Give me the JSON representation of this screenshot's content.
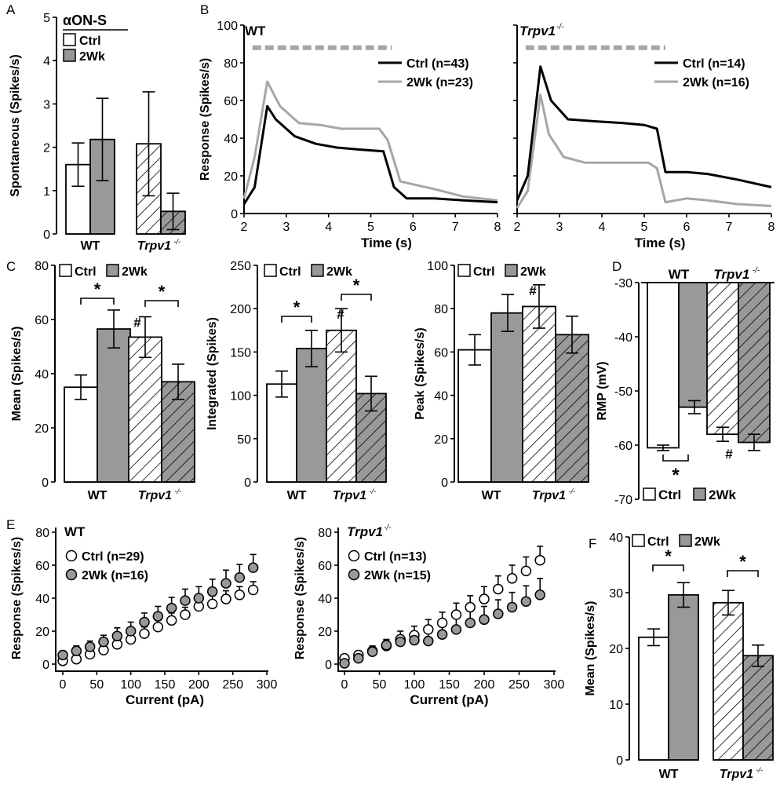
{
  "panels": {
    "A": "A",
    "B": "B",
    "C": "C",
    "D": "D",
    "E": "E",
    "F": "F"
  },
  "colors": {
    "ctrl": "#ffffff",
    "wk2": "#999999",
    "trace_ctrl": "#000000",
    "trace_2wk": "#a6a6a6",
    "stim_bar": "#a6a6a6"
  },
  "groups": {
    "wt": "WT",
    "trpv1": "Trpv1",
    "trpv1_sup": "-/-"
  },
  "legend": {
    "ctrl": "Ctrl",
    "wk2": "2Wk"
  },
  "chart_data": [
    {
      "id": "A",
      "type": "bar",
      "title": "αON-S",
      "ylabel": "Spontaneous (Spikes/s)",
      "ylim": [
        0,
        5
      ],
      "yticks": [
        0,
        1,
        2,
        3,
        4,
        5
      ],
      "groups": [
        "WT",
        "Trpv1-/-"
      ],
      "series": [
        {
          "name": "Ctrl",
          "values": [
            1.6,
            2.08
          ],
          "errors": [
            0.5,
            1.2
          ]
        },
        {
          "name": "2Wk",
          "values": [
            2.18,
            0.52
          ],
          "errors": [
            0.95,
            0.42
          ]
        }
      ]
    },
    {
      "id": "B-WT",
      "type": "line",
      "panel_label": "WT",
      "ylabel": "Response (Spikes/s)",
      "xlabel": "Time (s)",
      "xlim": [
        2,
        8
      ],
      "ylim": [
        0,
        100
      ],
      "xticks": [
        2,
        3,
        4,
        5,
        6,
        7,
        8
      ],
      "yticks": [
        0,
        20,
        40,
        60,
        80,
        100
      ],
      "stimulus": [
        2.2,
        5.5
      ],
      "series": [
        {
          "name": "Ctrl (n=43)",
          "x": [
            2,
            2.25,
            2.55,
            2.75,
            3.2,
            3.7,
            4.2,
            4.7,
            5.3,
            5.55,
            5.85,
            6.5,
            7.2,
            8
          ],
          "y": [
            5,
            14,
            57,
            50,
            41,
            37,
            35,
            34,
            33,
            14,
            8,
            8,
            7,
            6
          ]
        },
        {
          "name": "2Wk (n=23)",
          "x": [
            2,
            2.25,
            2.55,
            2.85,
            3.3,
            3.8,
            4.3,
            4.8,
            5.2,
            5.4,
            5.7,
            6.5,
            7.2,
            8
          ],
          "y": [
            8,
            30,
            70,
            57,
            48,
            47,
            45,
            45,
            45,
            39,
            17,
            13,
            9,
            7
          ]
        }
      ]
    },
    {
      "id": "B-Trpv1",
      "type": "line",
      "panel_label": "Trpv1-/-",
      "xlabel": "Time (s)",
      "xlim": [
        2,
        8
      ],
      "ylim": [
        0,
        100
      ],
      "xticks": [
        2,
        3,
        4,
        5,
        6,
        7,
        8
      ],
      "yticks": [
        0,
        20,
        40,
        60,
        80,
        100
      ],
      "stimulus": [
        2.2,
        5.5
      ],
      "series": [
        {
          "name": "Ctrl (n=14)",
          "x": [
            2,
            2.25,
            2.55,
            2.8,
            3.2,
            3.8,
            4.5,
            5.0,
            5.3,
            5.5,
            6.0,
            6.5,
            7.2,
            8
          ],
          "y": [
            7,
            20,
            78,
            60,
            50,
            49,
            48,
            47,
            45,
            22,
            22,
            21,
            18,
            14
          ]
        },
        {
          "name": "2Wk (n=16)",
          "x": [
            2,
            2.25,
            2.55,
            2.75,
            3.1,
            3.6,
            4.5,
            5.1,
            5.3,
            5.5,
            6.0,
            6.5,
            7.2,
            8
          ],
          "y": [
            3,
            12,
            63,
            42,
            30,
            27,
            27,
            27,
            24,
            6,
            8,
            7,
            5,
            4
          ]
        }
      ]
    },
    {
      "id": "C-Mean",
      "type": "bar",
      "ylabel": "Mean (Spikes/s)",
      "ylim": [
        0,
        80
      ],
      "yticks": [
        0,
        20,
        40,
        60,
        80
      ],
      "groups": [
        "WT",
        "Trpv1-/-"
      ],
      "series": [
        {
          "name": "Ctrl",
          "values": [
            35,
            53.5
          ],
          "errors": [
            4.5,
            7.5
          ]
        },
        {
          "name": "2Wk",
          "values": [
            56.5,
            37
          ],
          "errors": [
            7,
            6.5
          ]
        }
      ],
      "annotations": [
        "*",
        "*",
        "#"
      ]
    },
    {
      "id": "C-Integrated",
      "type": "bar",
      "ylabel": "Integrated (Spikes)",
      "ylim": [
        0,
        250
      ],
      "yticks": [
        0,
        50,
        100,
        150,
        200,
        250
      ],
      "groups": [
        "WT",
        "Trpv1-/-"
      ],
      "series": [
        {
          "name": "Ctrl",
          "values": [
            113,
            175
          ],
          "errors": [
            15,
            25
          ]
        },
        {
          "name": "2Wk",
          "values": [
            154,
            102
          ],
          "errors": [
            21,
            20
          ]
        }
      ],
      "annotations": [
        "*",
        "*",
        "#"
      ]
    },
    {
      "id": "C-Peak",
      "type": "bar",
      "ylabel": "Peak (Spikes/s)",
      "ylim": [
        0,
        100
      ],
      "yticks": [
        0,
        20,
        40,
        60,
        80,
        100
      ],
      "groups": [
        "WT",
        "Trpv1-/-"
      ],
      "series": [
        {
          "name": "Ctrl",
          "values": [
            61,
            81
          ],
          "errors": [
            7,
            10
          ]
        },
        {
          "name": "2Wk",
          "values": [
            78,
            68
          ],
          "errors": [
            8.5,
            8.5
          ]
        }
      ],
      "annotations": [
        "#"
      ]
    },
    {
      "id": "D",
      "type": "bar",
      "ylabel": "RMP (mV)",
      "ylim": [
        -70,
        -30
      ],
      "yticks": [
        -70,
        -60,
        -50,
        -40,
        -30
      ],
      "groups": [
        "WT",
        "Trpv1-/-"
      ],
      "series": [
        {
          "name": "Ctrl",
          "values": [
            -60.5,
            -58
          ],
          "errors": [
            0.5,
            1.3
          ]
        },
        {
          "name": "2Wk",
          "values": [
            -53,
            -59.5
          ],
          "errors": [
            1.2,
            1.5
          ]
        }
      ],
      "annotations": [
        "*",
        "#"
      ]
    },
    {
      "id": "E-WT",
      "type": "scatter",
      "panel_label": "WT",
      "ylabel": "Response (Spikes/s)",
      "xlabel": "Current (pA)",
      "xlim": [
        0,
        300
      ],
      "ylim": [
        0,
        80
      ],
      "xticks": [
        0,
        50,
        100,
        150,
        200,
        250,
        300
      ],
      "yticks": [
        0,
        20,
        40,
        60,
        80
      ],
      "x": [
        0,
        20,
        40,
        60,
        80,
        100,
        120,
        140,
        160,
        180,
        200,
        220,
        240,
        260,
        280
      ],
      "series": [
        {
          "name": "Ctrl (n=29)",
          "values": [
            2,
            3,
            6,
            8.5,
            12,
            15,
            18.5,
            22.5,
            26.5,
            30,
            35,
            36.5,
            39.5,
            42,
            45
          ],
          "errors": [
            2,
            2,
            2.5,
            3,
            3,
            3.5,
            4,
            4,
            4.5,
            4.5,
            5,
            5,
            5,
            5,
            5
          ]
        },
        {
          "name": "2Wk (n=16)",
          "values": [
            5.5,
            8,
            10.5,
            13.5,
            17,
            20,
            25.5,
            29,
            34,
            38.5,
            40,
            44,
            49,
            52.5,
            58.5
          ],
          "errors": [
            2.5,
            3,
            3.5,
            4,
            5,
            5.5,
            5.5,
            6,
            6.5,
            7,
            7,
            7.5,
            8,
            8,
            8
          ]
        }
      ]
    },
    {
      "id": "E-Trpv1",
      "type": "scatter",
      "panel_label": "Trpv1-/-",
      "ylabel": "Response (Spikes/s)",
      "xlabel": "Current (pA)",
      "xlim": [
        0,
        300
      ],
      "ylim": [
        0,
        80
      ],
      "xticks": [
        0,
        50,
        100,
        150,
        200,
        250,
        300
      ],
      "yticks": [
        0,
        20,
        40,
        60,
        80
      ],
      "x": [
        0,
        20,
        40,
        60,
        80,
        100,
        120,
        140,
        160,
        180,
        200,
        220,
        240,
        260,
        280
      ],
      "series": [
        {
          "name": "Ctrl (n=13)",
          "values": [
            3.5,
            5.5,
            8,
            11,
            15,
            17.5,
            21,
            25,
            30,
            34.5,
            39.5,
            45.5,
            52,
            56.5,
            63
          ],
          "errors": [
            2,
            2.5,
            3,
            3.5,
            5,
            5.5,
            6,
            6.5,
            7,
            7,
            7.5,
            8,
            8,
            8.5,
            8.5
          ]
        },
        {
          "name": "2Wk (n=15)",
          "values": [
            0.5,
            3.5,
            7.5,
            11.5,
            13.5,
            14.5,
            14,
            18,
            21,
            25,
            27,
            30.5,
            34.5,
            38,
            42
          ],
          "errors": [
            1.5,
            2.5,
            3,
            3.5,
            4,
            4.5,
            5,
            6,
            7,
            8,
            8,
            8.5,
            9,
            9.5,
            10
          ]
        }
      ]
    },
    {
      "id": "F",
      "type": "bar",
      "ylabel": "Mean (Spikes/s)",
      "ylim": [
        0,
        40
      ],
      "yticks": [
        0,
        10,
        20,
        30,
        40
      ],
      "groups": [
        "WT",
        "Trpv1-/-"
      ],
      "series": [
        {
          "name": "Ctrl",
          "values": [
            22,
            28.2
          ],
          "errors": [
            1.5,
            2.2
          ]
        },
        {
          "name": "2Wk",
          "values": [
            29.6,
            18.7
          ],
          "errors": [
            2.2,
            1.9
          ]
        }
      ],
      "annotations": [
        "*",
        "*"
      ]
    }
  ]
}
